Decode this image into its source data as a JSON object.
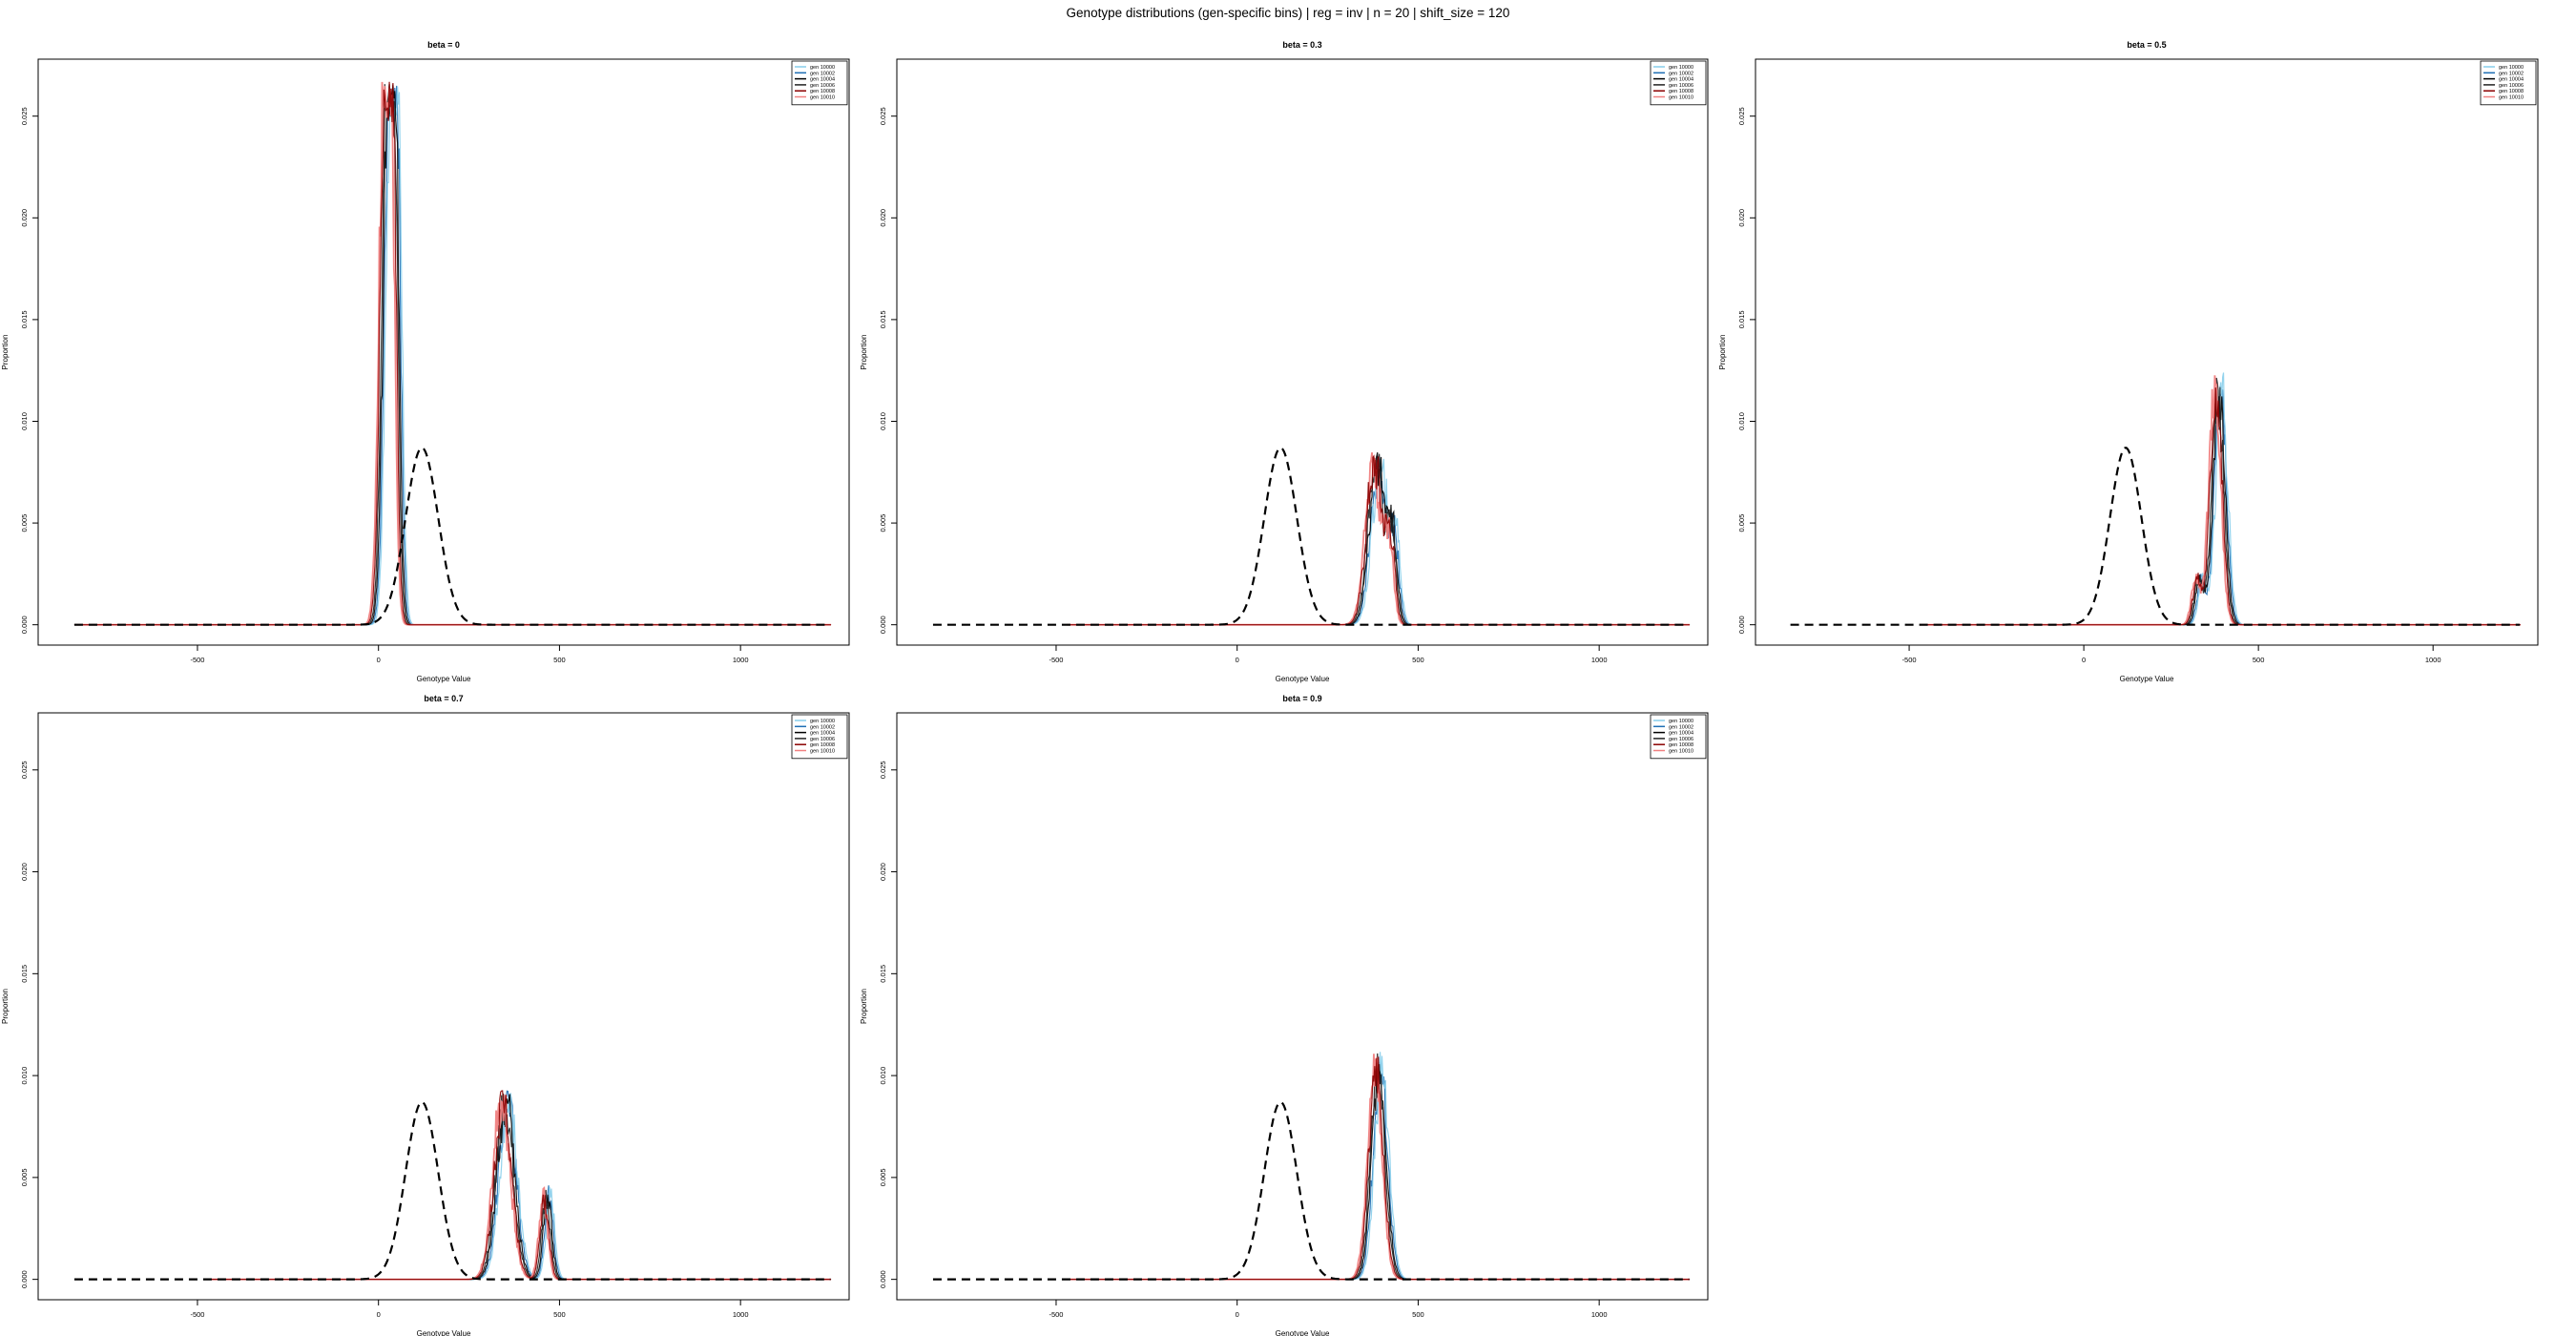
{
  "title": "Genotype distributions (gen-specific bins) | reg = inv | n = 20 | shift_size = 120",
  "colors": {
    "reference_curve": "#000000",
    "gen_series": [
      "#87CEEB",
      "#1F6FB4",
      "#000000",
      "#222222",
      "#8B0000",
      "#F08080"
    ]
  },
  "chart_data": [
    {
      "type": "line",
      "title": "beta = 0",
      "xlabel": "Genotype Value",
      "ylabel": "Proportion",
      "xlim": [
        -940,
        1300
      ],
      "ylim": [
        -0.001,
        0.0278
      ],
      "xticks": [
        -500,
        0,
        500,
        1000
      ],
      "yticks": [
        0.0,
        0.005,
        0.01,
        0.015,
        0.02,
        0.025
      ],
      "ytick_labels": [
        "0.000",
        "0.005",
        "0.010",
        "0.015",
        "0.020",
        "0.025"
      ],
      "legend_position": "top-right",
      "legend": [
        "gen 10000",
        "gen 10002",
        "gen 10004",
        "gen 10006",
        "gen 10008",
        "gen 10010"
      ],
      "reference": {
        "mean": 120,
        "sd": 45,
        "peak": 0.0087,
        "x_range": [
          -840,
          1250
        ]
      },
      "genotype": {
        "x_range": [
          -840,
          1250
        ],
        "components": [
          {
            "mean": 25,
            "sd": 14,
            "peak": 0.0265
          },
          {
            "mean": 45,
            "sd": 11,
            "peak": 0.02
          }
        ],
        "noise": 0.12,
        "max": 0.0268
      }
    },
    {
      "type": "line",
      "title": "beta = 0.3",
      "xlabel": "Genotype Value",
      "ylabel": "Proportion",
      "xlim": [
        -940,
        1300
      ],
      "ylim": [
        -0.001,
        0.0278
      ],
      "xticks": [
        -500,
        0,
        500,
        1000
      ],
      "yticks": [
        0.0,
        0.005,
        0.01,
        0.015,
        0.02,
        0.025
      ],
      "ytick_labels": [
        "0.000",
        "0.005",
        "0.010",
        "0.015",
        "0.020",
        "0.025"
      ],
      "legend_position": "top-right",
      "legend": [
        "gen 10000",
        "gen 10002",
        "gen 10004",
        "gen 10006",
        "gen 10008",
        "gen 10010"
      ],
      "reference": {
        "mean": 120,
        "sd": 45,
        "peak": 0.0087,
        "x_range": [
          -840,
          1250
        ]
      },
      "genotype": {
        "x_range": [
          -470,
          1250
        ],
        "components": [
          {
            "mean": 385,
            "sd": 22,
            "peak": 0.008
          },
          {
            "mean": 430,
            "sd": 12,
            "peak": 0.0038
          }
        ],
        "noise": 0.18,
        "max": 0.0085
      }
    },
    {
      "type": "line",
      "title": "beta = 0.5",
      "xlabel": "Genotype Value",
      "ylabel": "Proportion",
      "xlim": [
        -940,
        1300
      ],
      "ylim": [
        -0.001,
        0.0278
      ],
      "xticks": [
        -500,
        0,
        500,
        1000
      ],
      "yticks": [
        0.0,
        0.005,
        0.01,
        0.015,
        0.02,
        0.025
      ],
      "ytick_labels": [
        "0.000",
        "0.005",
        "0.010",
        "0.015",
        "0.020",
        "0.025"
      ],
      "legend_position": "top-right",
      "legend": [
        "gen 10000",
        "gen 10002",
        "gen 10004",
        "gen 10006",
        "gen 10008",
        "gen 10010"
      ],
      "reference": {
        "mean": 120,
        "sd": 45,
        "peak": 0.0087,
        "x_range": [
          -840,
          1250
        ]
      },
      "genotype": {
        "x_range": [
          -470,
          1250
        ],
        "components": [
          {
            "mean": 330,
            "sd": 12,
            "peak": 0.0022
          },
          {
            "mean": 385,
            "sd": 17,
            "peak": 0.0115
          }
        ],
        "noise": 0.15,
        "max": 0.0125
      }
    },
    {
      "type": "line",
      "title": "beta = 0.7",
      "xlabel": "Genotype Value",
      "ylabel": "Proportion",
      "xlim": [
        -940,
        1300
      ],
      "ylim": [
        -0.001,
        0.0278
      ],
      "xticks": [
        -500,
        0,
        500,
        1000
      ],
      "yticks": [
        0.0,
        0.005,
        0.01,
        0.015,
        0.02,
        0.025
      ],
      "ytick_labels": [
        "0.000",
        "0.005",
        "0.010",
        "0.015",
        "0.020",
        "0.025"
      ],
      "legend_position": "top-right",
      "legend": [
        "gen 10000",
        "gen 10002",
        "gen 10004",
        "gen 10006",
        "gen 10008",
        "gen 10010"
      ],
      "reference": {
        "mean": 120,
        "sd": 45,
        "peak": 0.0087,
        "x_range": [
          -840,
          1250
        ]
      },
      "genotype": {
        "x_range": [
          -470,
          1250
        ],
        "components": [
          {
            "mean": 350,
            "sd": 24,
            "peak": 0.0088
          },
          {
            "mean": 465,
            "sd": 12,
            "peak": 0.004
          }
        ],
        "noise": 0.16,
        "max": 0.0093
      }
    },
    {
      "type": "line",
      "title": "beta = 0.9",
      "xlabel": "Genotype Value",
      "ylabel": "Proportion",
      "xlim": [
        -940,
        1300
      ],
      "ylim": [
        -0.001,
        0.0278
      ],
      "xticks": [
        -500,
        0,
        500,
        1000
      ],
      "yticks": [
        0.0,
        0.005,
        0.01,
        0.015,
        0.02,
        0.025
      ],
      "ytick_labels": [
        "0.000",
        "0.005",
        "0.010",
        "0.015",
        "0.020",
        "0.025"
      ],
      "legend_position": "top-right",
      "legend": [
        "gen 10000",
        "gen 10002",
        "gen 10004",
        "gen 10006",
        "gen 10008",
        "gen 10010"
      ],
      "reference": {
        "mean": 120,
        "sd": 45,
        "peak": 0.0087,
        "x_range": [
          -840,
          1250
        ]
      },
      "genotype": {
        "x_range": [
          -470,
          1250
        ],
        "components": [
          {
            "mean": 390,
            "sd": 20,
            "peak": 0.0103
          }
        ],
        "noise": 0.12,
        "max": 0.0112
      }
    }
  ]
}
